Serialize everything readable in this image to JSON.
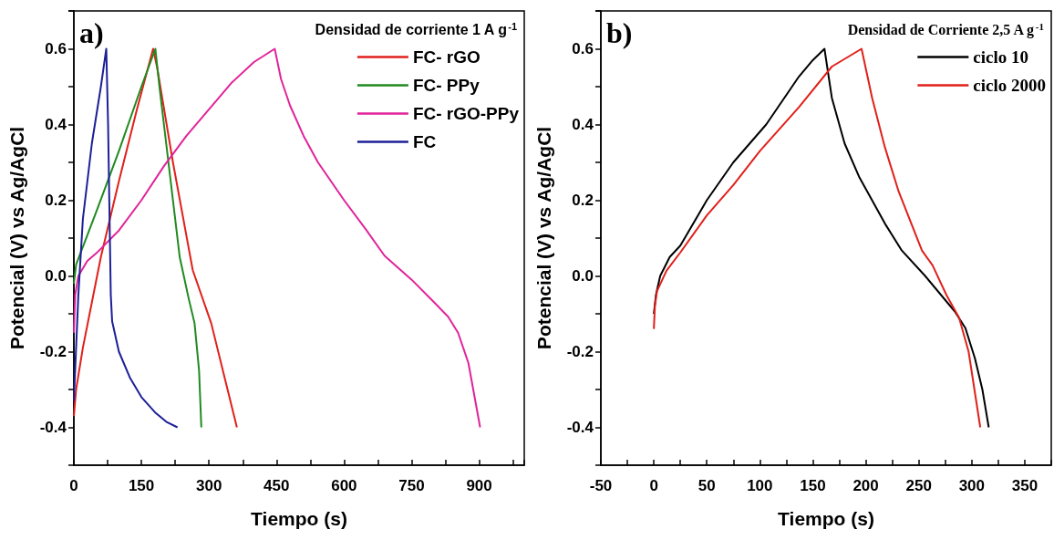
{
  "chart_data": [
    {
      "type": "line",
      "xlabel": "Tiempo (s)",
      "ylabel": "Potencial (V) vs Ag/AgCl",
      "legend_title": "Densidad de corriente 1 A g$^{-1}$",
      "legend": "top right",
      "grid": false,
      "marker": "none",
      "line_style": "solid",
      "annotations": [
        "a)"
      ],
      "xlim": [
        0,
        1000
      ],
      "xticks": [
        0,
        {
          "value": 75,
          "label": null
        },
        150,
        {
          "value": 225,
          "label": null
        },
        300,
        {
          "value": 375,
          "label": null
        },
        450,
        {
          "value": 525,
          "label": null
        },
        600,
        {
          "value": 675,
          "label": null
        },
        750,
        {
          "value": 825,
          "label": null
        },
        900,
        {
          "value": 975,
          "label": null
        }
      ],
      "ylim": [
        -0.5,
        0.7
      ],
      "yticks": [
        {
          "value": -0.5,
          "label": null
        },
        -0.4,
        {
          "value": -0.3,
          "label": null
        },
        -0.2,
        {
          "value": -0.1,
          "label": null
        },
        {
          "value": 0,
          "label": "0.0"
        },
        {
          "value": 0.1,
          "label": null
        },
        0.2,
        {
          "value": 0.3,
          "label": null
        },
        0.4,
        {
          "value": 0.5,
          "label": null
        },
        0.6
      ],
      "series": [
        {
          "name": "FC- rGO",
          "color": "#e0201b",
          "x": [
            0,
            5,
            20,
            40,
            60,
            100,
            140,
            176,
            185,
            220,
            264,
            305,
            335,
            362
          ],
          "values": [
            -0.37,
            -0.3,
            -0.19,
            -0.07,
            0.05,
            0.25,
            0.44,
            0.6,
            0.55,
            0.3,
            0.015,
            -0.125,
            -0.27,
            -0.4
          ]
        },
        {
          "name": "FC- PPy",
          "color": "#208a20",
          "x": [
            0,
            5,
            50,
            100,
            150,
            181,
            190,
            210,
            235,
            255,
            268,
            278,
            283
          ],
          "values": [
            -0.02,
            0.03,
            0.17,
            0.33,
            0.5,
            0.6,
            0.5,
            0.3,
            0.05,
            -0.06,
            -0.125,
            -0.25,
            -0.4
          ]
        },
        {
          "name": "FC- rGO-PPy",
          "color": "#e0239a",
          "x": [
            0,
            3,
            10,
            30,
            50,
            100,
            150,
            200,
            250,
            300,
            350,
            400,
            446,
            460,
            480,
            510,
            542,
            600,
            650,
            690,
            750,
            800,
            831,
            853,
            876,
            902
          ],
          "values": [
            -0.15,
            -0.05,
            0,
            0.04,
            0.06,
            0.12,
            0.2,
            0.29,
            0.37,
            0.44,
            0.51,
            0.565,
            0.6,
            0.52,
            0.45,
            0.37,
            0.3,
            0.2,
            0.12,
            0.053,
            -0.01,
            -0.07,
            -0.108,
            -0.15,
            -0.23,
            -0.4
          ]
        },
        {
          "name": "FC",
          "color": "#1c1f96",
          "x": [
            0,
            10,
            20,
            40,
            60,
            72,
            76,
            80,
            82,
            85,
            100,
            125,
            150,
            180,
            205,
            230
          ],
          "values": [
            -0.33,
            -0.05,
            0.15,
            0.35,
            0.5,
            0.6,
            0.4,
            0.1,
            -0.05,
            -0.12,
            -0.2,
            -0.27,
            -0.32,
            -0.36,
            -0.385,
            -0.4
          ]
        }
      ]
    },
    {
      "type": "line",
      "xlabel": "Tiempo (s)",
      "ylabel": "Potencial (V) vs Ag/AgCl",
      "legend_title": "Densidad de Corriente 2,5 A g$^{-1}$",
      "legend": "top right",
      "grid": false,
      "marker": "none",
      "line_style": "solid",
      "annotations": [
        "b)"
      ],
      "xlim": [
        -50,
        375
      ],
      "xticks": [
        -50,
        {
          "value": -25,
          "label": null
        },
        0,
        {
          "value": 25,
          "label": null
        },
        50,
        {
          "value": 75,
          "label": null
        },
        100,
        {
          "value": 125,
          "label": null
        },
        150,
        {
          "value": 175,
          "label": null
        },
        200,
        {
          "value": 225,
          "label": null
        },
        250,
        {
          "value": 275,
          "label": null
        },
        300,
        {
          "value": 325,
          "label": null
        },
        350
      ],
      "ylim": [
        -0.5,
        0.7
      ],
      "yticks": [
        {
          "value": -0.5,
          "label": null
        },
        -0.4,
        {
          "value": -0.3,
          "label": null
        },
        -0.2,
        {
          "value": -0.1,
          "label": null
        },
        {
          "value": 0,
          "label": "0.0"
        },
        {
          "value": 0.1,
          "label": null
        },
        0.2,
        {
          "value": 0.3,
          "label": null
        },
        0.4,
        {
          "value": 0.5,
          "label": null
        },
        0.6
      ],
      "series": [
        {
          "name": "ciclo 10",
          "color": "#000000",
          "x": [
            0,
            2,
            6,
            15,
            25,
            50,
            75,
            106,
            137,
            150,
            161,
            168,
            180,
            194,
            219,
            234,
            256,
            284,
            294,
            303,
            310,
            316
          ],
          "values": [
            -0.1,
            -0.05,
            0,
            0.05,
            0.08,
            0.2,
            0.3,
            0.4,
            0.527,
            0.57,
            0.6,
            0.47,
            0.35,
            0.26,
            0.134,
            0.067,
            0,
            -0.094,
            -0.138,
            -0.218,
            -0.3,
            -0.4
          ]
        },
        {
          "name": "ciclo 2000",
          "color": "#e0201b",
          "x": [
            0,
            1,
            3,
            12,
            25,
            50,
            75,
            100,
            137,
            168,
            196,
            206,
            218,
            231,
            253,
            263,
            276,
            288,
            297,
            308
          ],
          "values": [
            -0.14,
            -0.08,
            -0.04,
            0.014,
            0.062,
            0.16,
            0.24,
            0.33,
            0.446,
            0.553,
            0.6,
            0.47,
            0.34,
            0.223,
            0.067,
            0.028,
            -0.05,
            -0.11,
            -0.2,
            -0.4
          ]
        }
      ]
    }
  ]
}
